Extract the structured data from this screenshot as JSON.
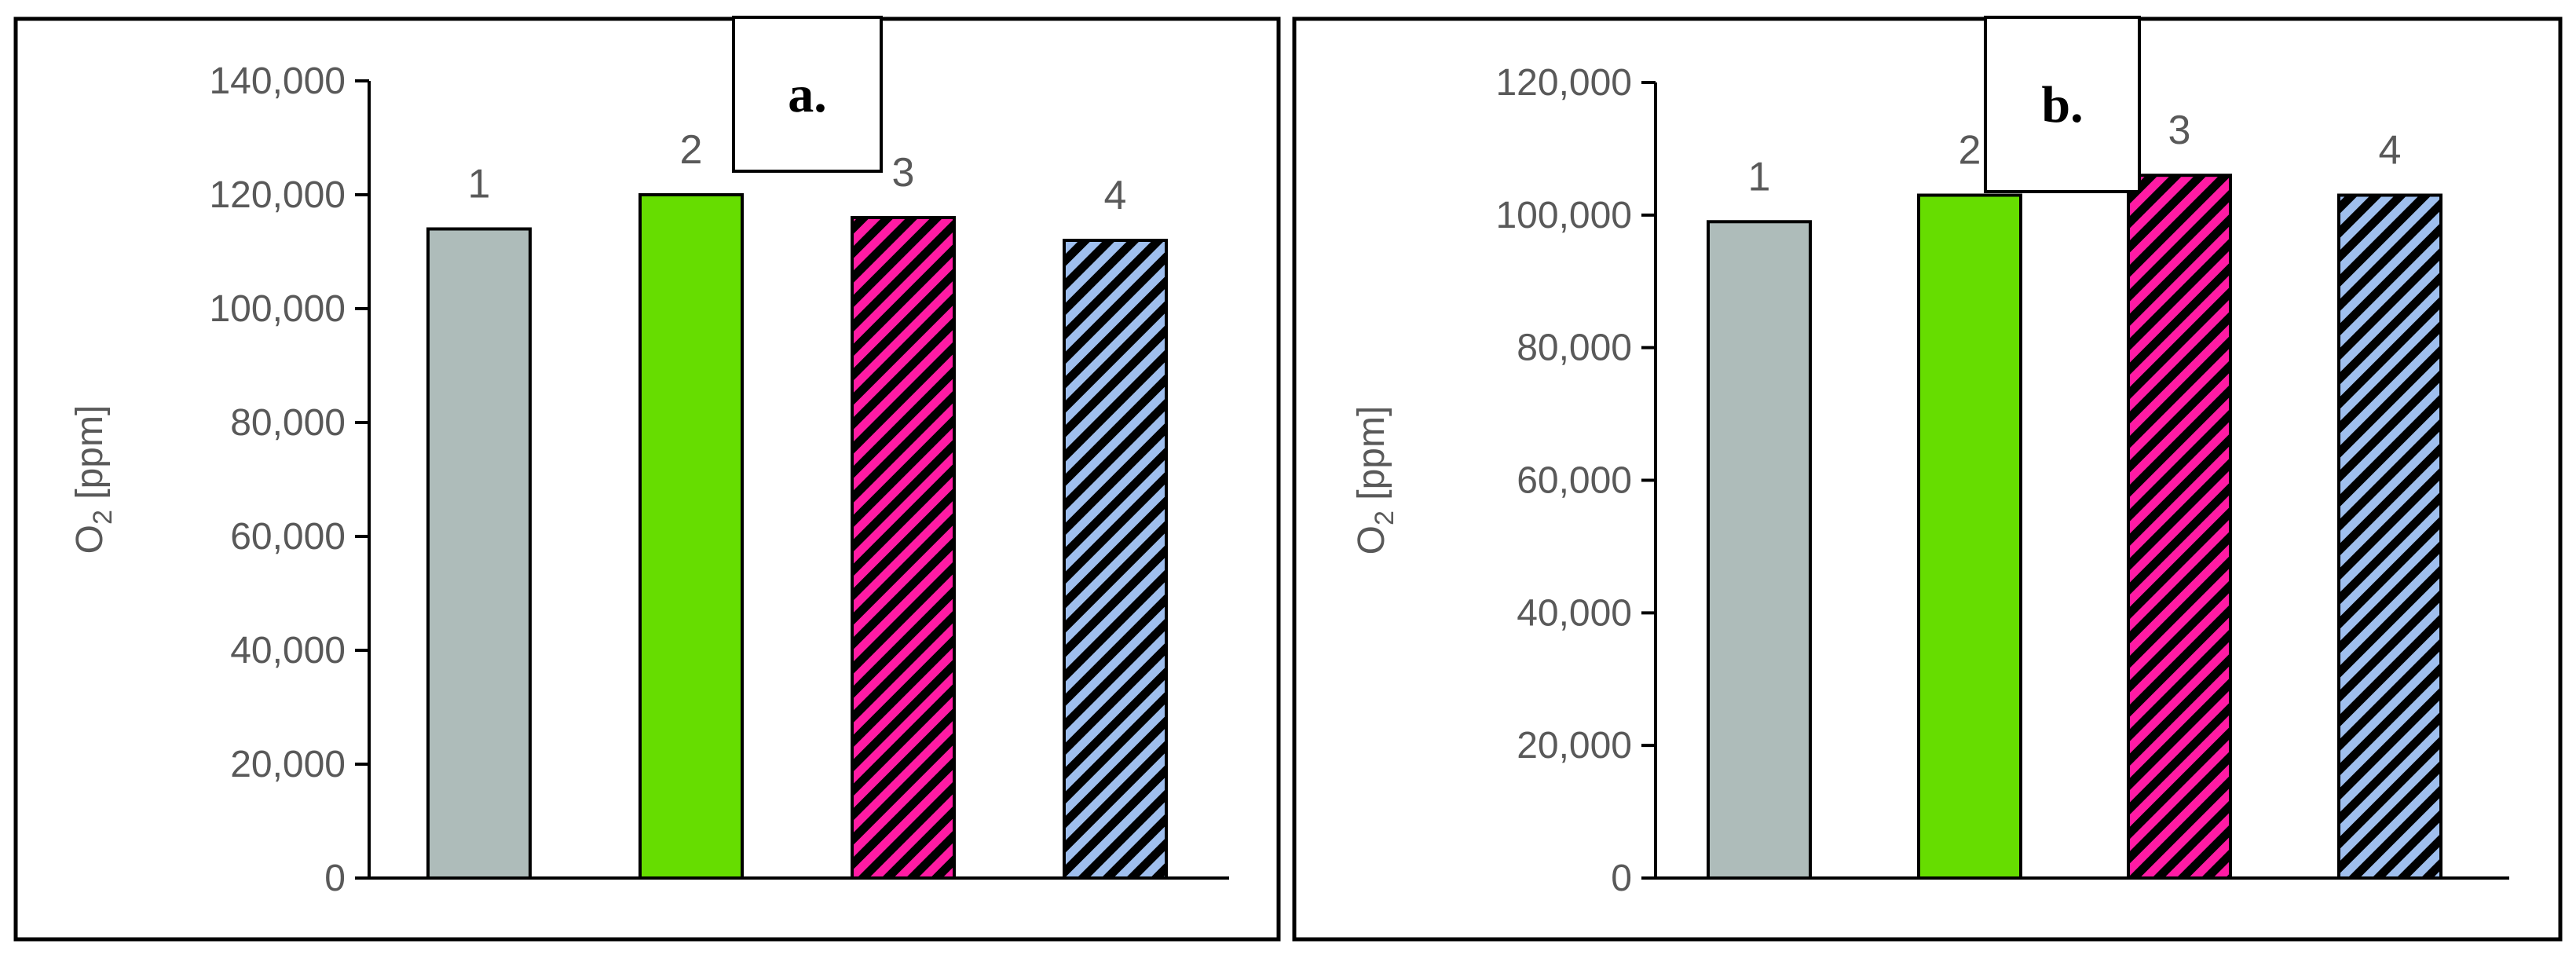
{
  "chart_data": [
    {
      "panel_label": "a.",
      "type": "bar",
      "categories": [
        "1",
        "2",
        "3",
        "4"
      ],
      "values": [
        114000,
        120000,
        116000,
        112000
      ],
      "ylabel_main": "O",
      "ylabel_sub": "2",
      "ylabel_unit": " [ppm]",
      "ylim": [
        0,
        140000
      ],
      "yticks": [
        0,
        20000,
        40000,
        60000,
        80000,
        100000,
        120000,
        140000
      ],
      "ytick_labels": [
        "0",
        "20,000",
        "40,000",
        "60,000",
        "80,000",
        "100,000",
        "120,000",
        "140,000"
      ],
      "grid": false,
      "legend": "none"
    },
    {
      "panel_label": "b.",
      "type": "bar",
      "categories": [
        "1",
        "2",
        "3",
        "4"
      ],
      "values": [
        99000,
        103000,
        106000,
        103000
      ],
      "ylabel_main": "O",
      "ylabel_sub": "2",
      "ylabel_unit": " [ppm]",
      "ylim": [
        0,
        120000
      ],
      "yticks": [
        0,
        20000,
        40000,
        60000,
        80000,
        100000,
        120000
      ],
      "ytick_labels": [
        "0",
        "20,000",
        "40,000",
        "60,000",
        "80,000",
        "100,000",
        "120,000"
      ],
      "grid": false,
      "legend": "none"
    }
  ],
  "bar_styles": [
    {
      "fill": "#aebcba",
      "hatch": "none"
    },
    {
      "fill": "#66dd00",
      "hatch": "none"
    },
    {
      "fill": "#ff1ba4",
      "hatch": "diagonal",
      "hatch_color": "#000000"
    },
    {
      "fill": "#9fbfee",
      "hatch": "diagonal",
      "hatch_color": "#000000"
    }
  ],
  "colors": {
    "axis": "#000000",
    "text": "#595959",
    "frame": "#000000"
  }
}
